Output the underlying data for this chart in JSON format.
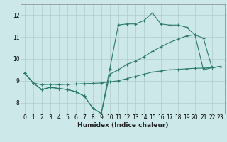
{
  "xlabel": "Humidex (Indice chaleur)",
  "bg_color": "#cce8e8",
  "grid_color": "#b0cccc",
  "line_color": "#2a7a6a",
  "xlim": [
    -0.5,
    23.5
  ],
  "ylim": [
    7.5,
    12.5
  ],
  "yticks": [
    8,
    9,
    10,
    11,
    12
  ],
  "xticks": [
    0,
    1,
    2,
    3,
    4,
    5,
    6,
    7,
    8,
    9,
    10,
    11,
    12,
    13,
    14,
    15,
    16,
    17,
    18,
    19,
    20,
    21,
    22,
    23
  ],
  "curve1_x": [
    0,
    1,
    2,
    3,
    4,
    5,
    6,
    7,
    8,
    9,
    10,
    11,
    12,
    13,
    14,
    15,
    16,
    17,
    18,
    19,
    20,
    21,
    22,
    23
  ],
  "curve1_y": [
    9.35,
    8.9,
    8.6,
    8.7,
    8.65,
    8.6,
    8.5,
    8.3,
    7.75,
    7.5,
    9.55,
    11.55,
    11.6,
    11.6,
    11.75,
    12.1,
    11.6,
    11.55,
    11.55,
    11.45,
    11.1,
    9.5,
    9.6,
    9.65
  ],
  "curve2_x": [
    0,
    1,
    2,
    3,
    4,
    5,
    6,
    7,
    8,
    9,
    10,
    11,
    12,
    13,
    14,
    15,
    16,
    17,
    18,
    19,
    20,
    21,
    22,
    23
  ],
  "curve2_y": [
    9.35,
    8.9,
    8.6,
    8.7,
    8.65,
    8.6,
    8.5,
    8.3,
    7.75,
    7.5,
    9.3,
    9.5,
    9.75,
    9.9,
    10.1,
    10.35,
    10.55,
    10.75,
    10.9,
    11.05,
    11.1,
    10.95,
    9.6,
    9.65
  ],
  "curve3_x": [
    0,
    1,
    2,
    3,
    4,
    5,
    6,
    7,
    8,
    9,
    10,
    11,
    12,
    13,
    14,
    15,
    16,
    17,
    18,
    19,
    20,
    21,
    22,
    23
  ],
  "curve3_y": [
    9.35,
    8.9,
    8.82,
    8.84,
    8.82,
    8.84,
    8.85,
    8.87,
    8.88,
    8.9,
    8.95,
    9.0,
    9.1,
    9.2,
    9.3,
    9.4,
    9.45,
    9.5,
    9.52,
    9.55,
    9.57,
    9.58,
    9.6,
    9.65
  ]
}
